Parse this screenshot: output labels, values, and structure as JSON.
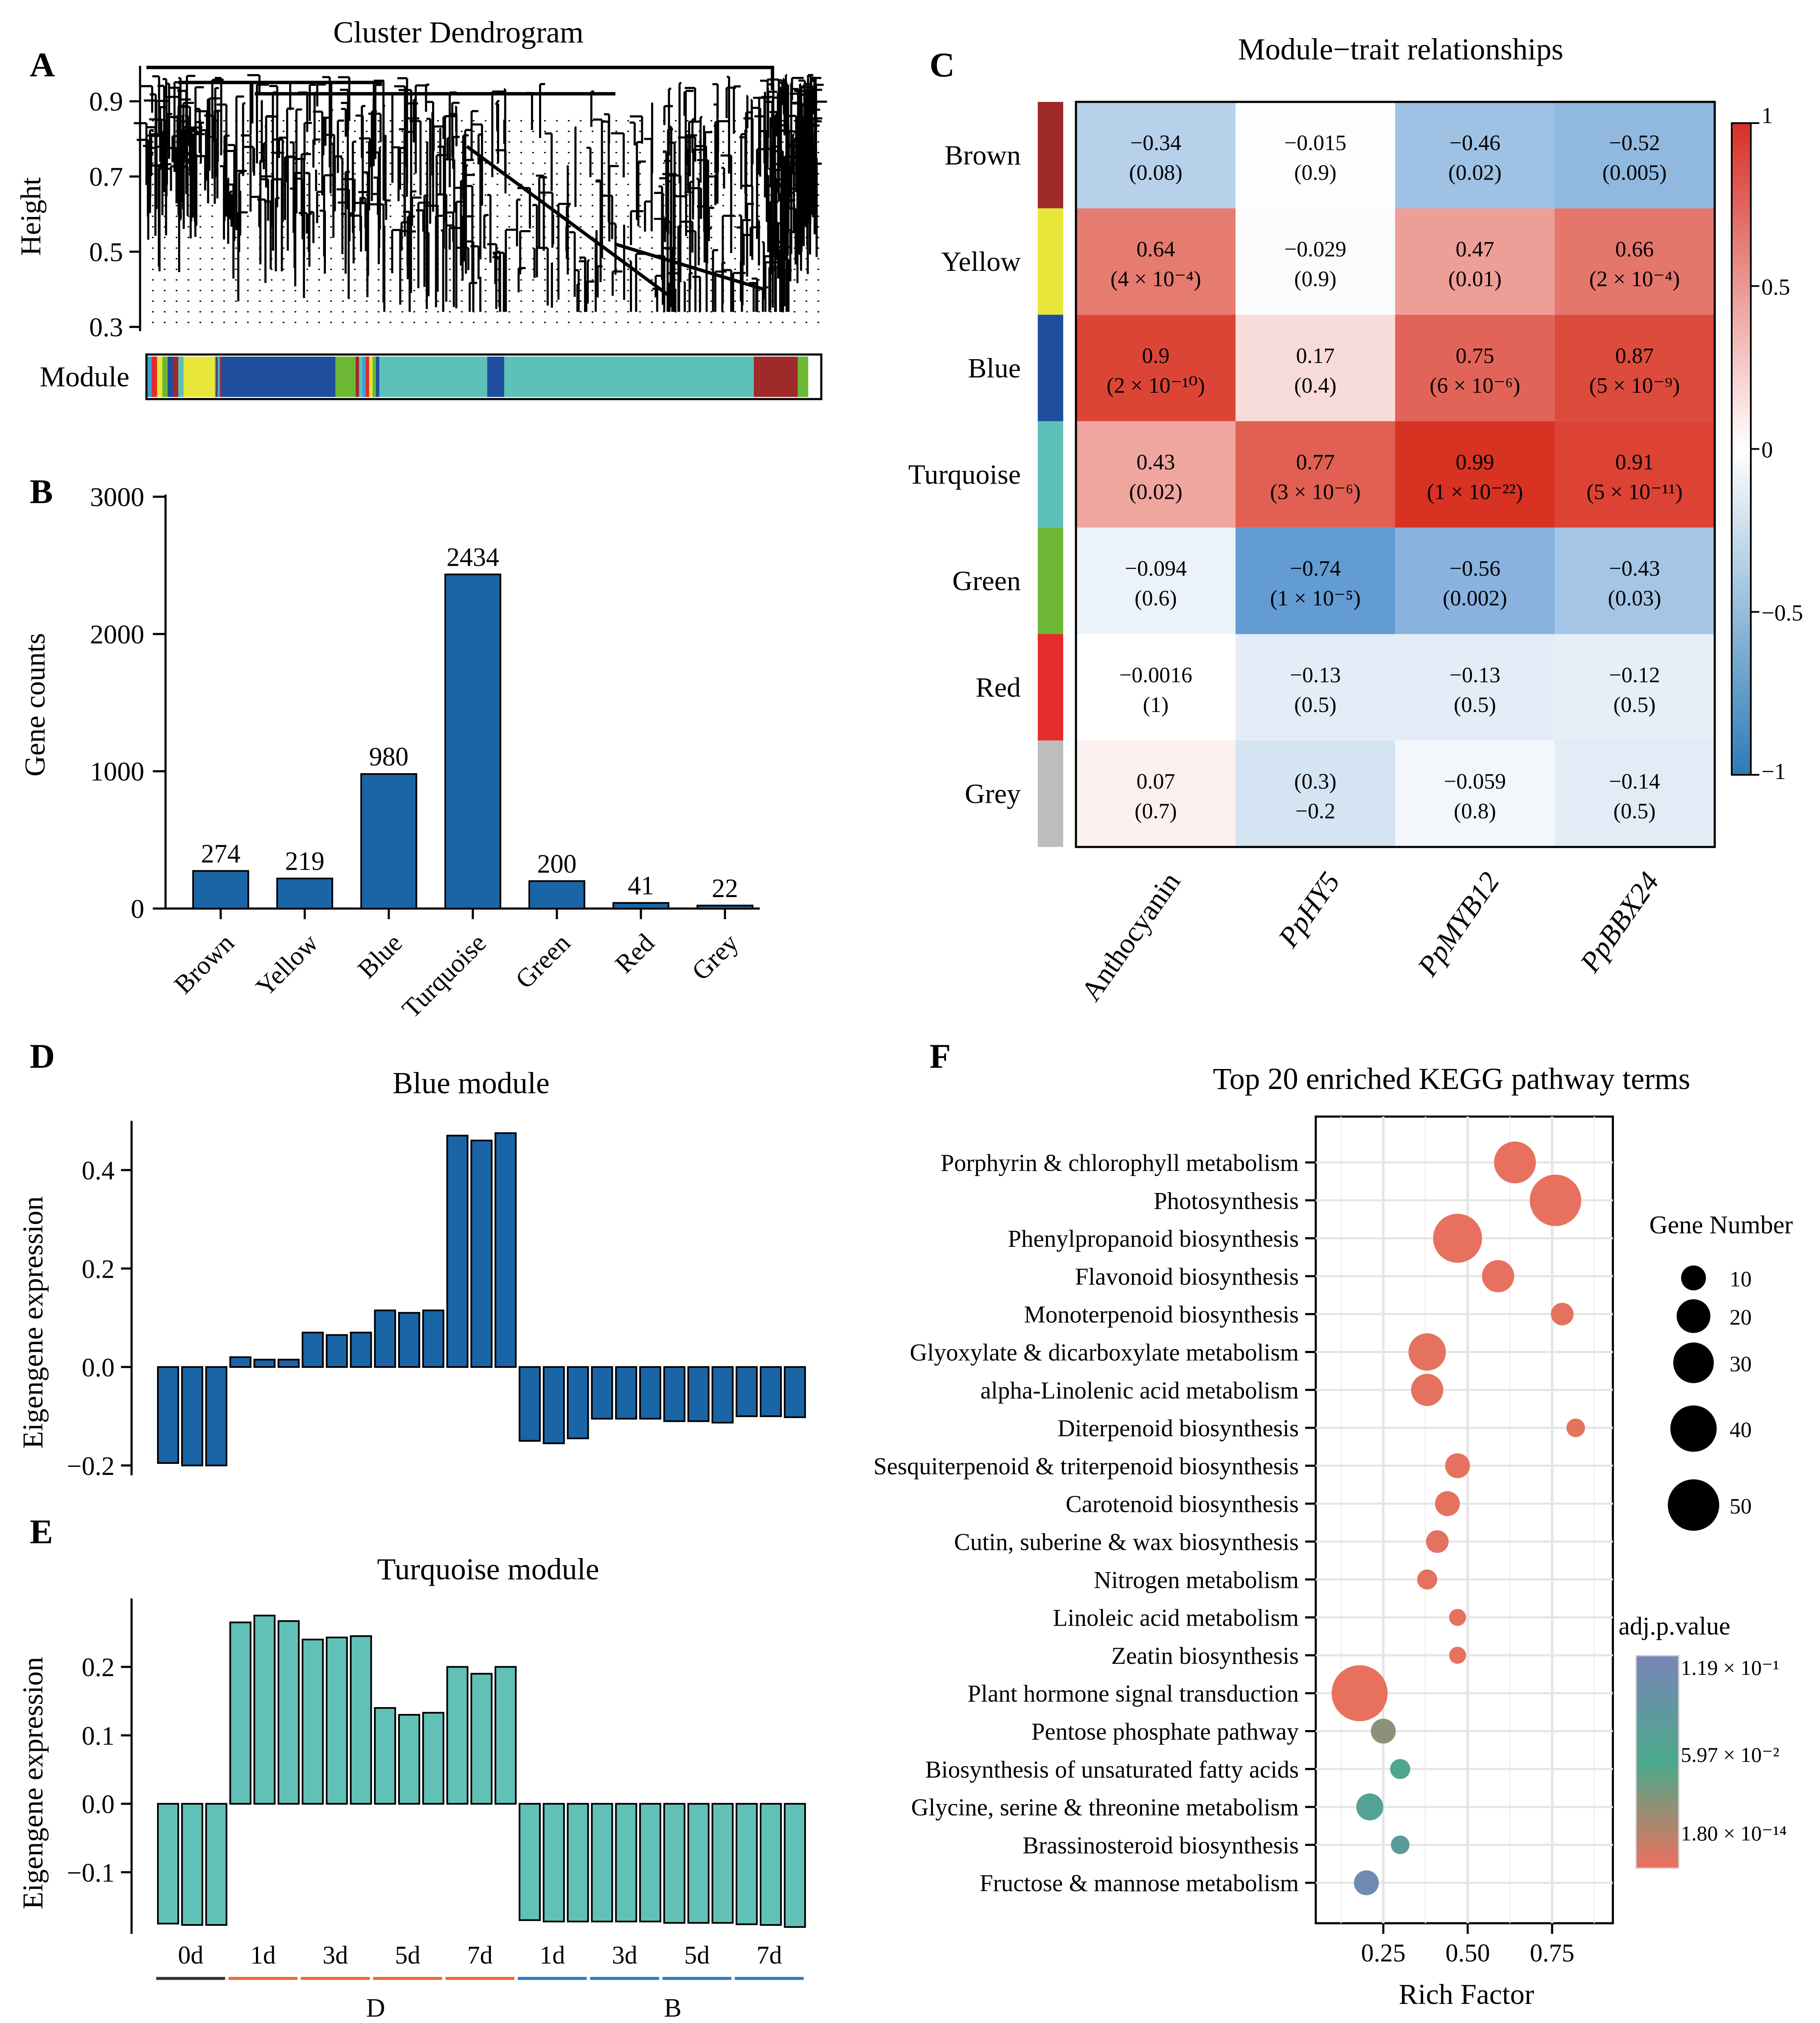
{
  "panel_labels": {
    "a": "A",
    "b": "B",
    "c": "C",
    "d": "D",
    "e": "E",
    "f": "F"
  },
  "colors": {
    "brown": "#a02a2a",
    "yellow": "#e8e63b",
    "blue": "#1f4e9e",
    "turquoise": "#5dc0b9",
    "green": "#6cb834",
    "red": "#e52c2a",
    "grey": "#bdbdbd",
    "bar_blue": "#1a65a6",
    "bar_turq": "#62c1b7",
    "pos": "#e2452b",
    "neg": "#2e7cc4",
    "line_dark": "#333333",
    "line_orange": "#e76a31",
    "line_blue": "#2a7ac0"
  },
  "chart_data": [
    {
      "id": "A",
      "type": "dendrogram",
      "title": "Cluster Dendrogram",
      "ylabel": "Height",
      "ylim": [
        0.3,
        1.0
      ],
      "yticks": [
        0.9,
        0.7,
        0.5,
        0.3
      ],
      "module_label": "Module",
      "module_strip": [
        {
          "module": "Mixed",
          "fraction": 0.055
        },
        {
          "module": "Yellow",
          "fraction": 0.045
        },
        {
          "module": "Mixed",
          "fraction": 0.01
        },
        {
          "module": "Blue",
          "fraction": 0.17
        },
        {
          "module": "Green",
          "fraction": 0.03
        },
        {
          "module": "Mixed",
          "fraction": 0.035
        },
        {
          "module": "Turquoise",
          "fraction": 0.16
        },
        {
          "module": "Blue",
          "fraction": 0.025
        },
        {
          "module": "Turquoise",
          "fraction": 0.37
        },
        {
          "module": "Brown",
          "fraction": 0.065
        },
        {
          "module": "Green",
          "fraction": 0.015
        }
      ]
    },
    {
      "id": "B",
      "type": "bar",
      "ylabel": "Gene counts",
      "ylim": [
        0,
        3000
      ],
      "yticks": [
        0,
        1000,
        2000,
        3000
      ],
      "categories": [
        "Brown",
        "Yellow",
        "Blue",
        "Turquoise",
        "Green",
        "Red",
        "Grey"
      ],
      "values": [
        274,
        219,
        980,
        2434,
        200,
        41,
        22
      ]
    },
    {
      "id": "C",
      "type": "heatmap",
      "title": "Module−trait relationships",
      "rows": [
        "Brown",
        "Yellow",
        "Blue",
        "Turquoise",
        "Green",
        "Red",
        "Grey"
      ],
      "columns": [
        "Anthocyanin",
        "PpHY5",
        "PpMYB12",
        "PpBBX24"
      ],
      "values": [
        [
          -0.34,
          -0.015,
          -0.46,
          -0.52
        ],
        [
          0.64,
          -0.029,
          0.47,
          0.66
        ],
        [
          0.9,
          0.17,
          0.75,
          0.87
        ],
        [
          0.43,
          0.77,
          0.99,
          0.91
        ],
        [
          -0.094,
          -0.74,
          -0.56,
          -0.43
        ],
        [
          -0.0016,
          -0.13,
          -0.13,
          -0.12
        ],
        [
          0.07,
          -0.2,
          -0.059,
          -0.14
        ]
      ],
      "cell_text": [
        [
          [
            "−0.34",
            "(0.08)"
          ],
          [
            "−0.015",
            "(0.9)"
          ],
          [
            "−0.46",
            "(0.02)"
          ],
          [
            "−0.52",
            "(0.005)"
          ]
        ],
        [
          [
            "0.64",
            "(4 × 10⁻⁴)"
          ],
          [
            "−0.029",
            "(0.9)"
          ],
          [
            "0.47",
            "(0.01)"
          ],
          [
            "0.66",
            "(2 × 10⁻⁴)"
          ]
        ],
        [
          [
            "0.9",
            "(2 × 10⁻¹⁰)"
          ],
          [
            "0.17",
            "(0.4)"
          ],
          [
            "0.75",
            "(6 × 10⁻⁶)"
          ],
          [
            "0.87",
            "(5 × 10⁻⁹)"
          ]
        ],
        [
          [
            "0.43",
            "(0.02)"
          ],
          [
            "0.77",
            "(3 × 10⁻⁶)"
          ],
          [
            "0.99",
            "(1 × 10⁻²²)"
          ],
          [
            "0.91",
            "(5 × 10⁻¹¹)"
          ]
        ],
        [
          [
            "−0.094",
            "(0.6)"
          ],
          [
            "−0.74",
            "(1 × 10⁻⁵)"
          ],
          [
            "−0.56",
            "(0.002)"
          ],
          [
            "−0.43",
            "(0.03)"
          ]
        ],
        [
          [
            "−0.0016",
            "(1)"
          ],
          [
            "−0.13",
            "(0.5)"
          ],
          [
            "−0.13",
            "(0.5)"
          ],
          [
            "−0.12",
            "(0.5)"
          ]
        ],
        [
          [
            "0.07",
            "(0.7)"
          ],
          [
            "(0.3)",
            "−0.2"
          ],
          [
            "−0.059",
            "(0.8)"
          ],
          [
            "−0.14",
            "(0.5)"
          ]
        ]
      ],
      "legend_ticks": [
        "1",
        "0.5",
        "0",
        "−0.5",
        "−1"
      ],
      "legend_range": [
        -1,
        1
      ]
    },
    {
      "id": "D",
      "type": "bar",
      "title": "Blue module",
      "ylabel": "Eigengene expression",
      "ylim": [
        -0.22,
        0.5
      ],
      "yticks": [
        -0.2,
        0.0,
        0.2,
        0.4
      ],
      "ytick_labels": [
        "−0.2",
        "0.0",
        "0.2",
        "0.4"
      ],
      "values": [
        -0.195,
        -0.2,
        -0.2,
        0.02,
        0.015,
        0.015,
        0.07,
        0.065,
        0.07,
        0.115,
        0.11,
        0.115,
        0.47,
        0.46,
        0.475,
        -0.15,
        -0.155,
        -0.145,
        -0.105,
        -0.105,
        -0.105,
        -0.11,
        -0.11,
        -0.113,
        -0.1,
        -0.1,
        -0.102
      ]
    },
    {
      "id": "E",
      "type": "bar",
      "title": "Turquoise module",
      "ylabel": "Eigengene expression",
      "ylim": [
        -0.19,
        0.3
      ],
      "yticks": [
        -0.1,
        0.0,
        0.1,
        0.2
      ],
      "ytick_labels": [
        "−0.1",
        "0.0",
        "0.1",
        "0.2"
      ],
      "values": [
        -0.175,
        -0.177,
        -0.177,
        0.265,
        0.275,
        0.267,
        0.24,
        0.243,
        0.245,
        0.14,
        0.13,
        0.133,
        0.2,
        0.19,
        0.2,
        -0.17,
        -0.172,
        -0.172,
        -0.172,
        -0.172,
        -0.172,
        -0.174,
        -0.174,
        -0.174,
        -0.176,
        -0.177,
        -0.18
      ],
      "group_labels": [
        "0d",
        "1d",
        "3d",
        "5d",
        "7d",
        "1d",
        "3d",
        "5d",
        "7d"
      ],
      "group_colors": [
        "line_dark",
        "line_orange",
        "line_orange",
        "line_orange",
        "line_orange",
        "line_blue",
        "line_blue",
        "line_blue",
        "line_blue"
      ],
      "treatment_labels": [
        "D",
        "B"
      ]
    },
    {
      "id": "F",
      "type": "scatter",
      "title": "Top 20 enriched KEGG pathway terms",
      "xlabel": "Rich Factor",
      "xlim": [
        0.05,
        0.93
      ],
      "xticks": [
        0.25,
        0.5,
        0.75
      ],
      "xtick_labels": [
        "0.25",
        "0.50",
        "0.75"
      ],
      "terms": [
        "Porphyrin & chlorophyll metabolism",
        "Photosynthesis",
        "Phenylpropanoid biosynthesis",
        "Flavonoid biosynthesis",
        "Monoterpenoid biosynthesis",
        "Glyoxylate & dicarboxylate metabolism",
        "alpha-Linolenic acid metabolism",
        "Diterpenoid biosynthesis",
        "Sesquiterpenoid & triterpenoid biosynthesis",
        "Carotenoid biosynthesis",
        "Cutin, suberine & wax biosynthesis",
        "Nitrogen metabolism",
        "Linoleic acid metabolism",
        "Zeatin biosynthesis",
        "Plant hormone signal transduction",
        "Pentose phosphate pathway",
        "Biosynthesis of unsaturated fatty acids",
        "Glycine, serine & threonine metabolism",
        "Brassinosteroid biosynthesis",
        "Fructose & mannose metabolism"
      ],
      "rich_factor": [
        0.64,
        0.76,
        0.47,
        0.59,
        0.78,
        0.38,
        0.38,
        0.82,
        0.47,
        0.44,
        0.41,
        0.38,
        0.47,
        0.47,
        0.18,
        0.25,
        0.3,
        0.21,
        0.3,
        0.2
      ],
      "gene_number": [
        32,
        50,
        45,
        18,
        8,
        25,
        18,
        5,
        10,
        10,
        8,
        6,
        4,
        4,
        60,
        10,
        6,
        12,
        5,
        10
      ],
      "color_score": [
        0.02,
        0.02,
        0.02,
        0.02,
        0.03,
        0.03,
        0.03,
        0.03,
        0.03,
        0.03,
        0.03,
        0.03,
        0.03,
        0.03,
        0.02,
        0.3,
        0.55,
        0.6,
        0.7,
        0.9
      ],
      "size_legend_title": "Gene Number",
      "size_legend": [
        10,
        20,
        30,
        40,
        50
      ],
      "color_legend_title": "adj.p.value",
      "color_legend_labels": [
        "1.19 × 10⁻¹",
        "5.97 × 10⁻²",
        "1.80 × 10⁻¹⁴"
      ]
    }
  ]
}
